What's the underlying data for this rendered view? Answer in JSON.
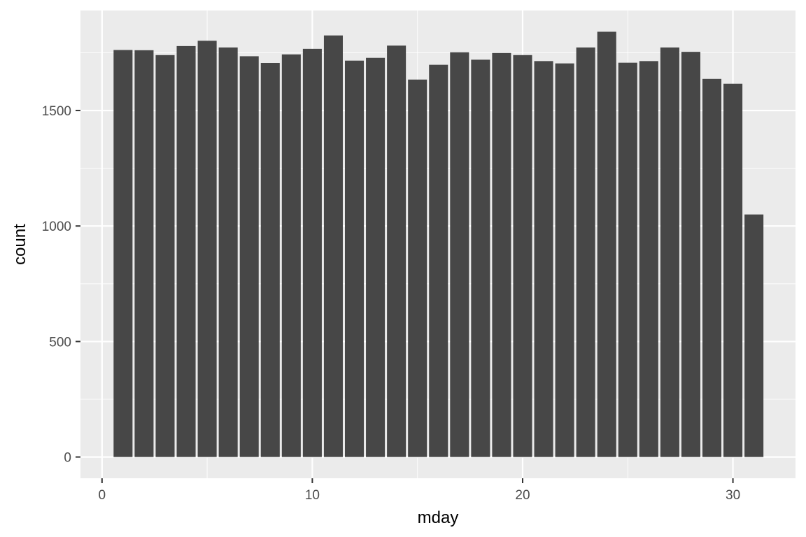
{
  "chart_data": {
    "type": "bar",
    "title": "",
    "xlabel": "mday",
    "ylabel": "count",
    "x": [
      1,
      2,
      3,
      4,
      5,
      6,
      7,
      8,
      9,
      10,
      11,
      12,
      13,
      14,
      15,
      16,
      17,
      18,
      19,
      20,
      21,
      22,
      23,
      24,
      25,
      26,
      27,
      28,
      29,
      30,
      31
    ],
    "values": [
      1762,
      1761,
      1740,
      1779,
      1802,
      1773,
      1735,
      1706,
      1743,
      1767,
      1825,
      1716,
      1728,
      1781,
      1634,
      1698,
      1752,
      1720,
      1749,
      1740,
      1714,
      1704,
      1773,
      1841,
      1707,
      1714,
      1773,
      1754,
      1637,
      1616,
      1050
    ],
    "x_ticks": [
      0,
      10,
      20,
      30
    ],
    "x_tick_labels": [
      "0",
      "10",
      "20",
      "30"
    ],
    "y_ticks": [
      0,
      500,
      1000,
      1500
    ],
    "y_tick_labels": [
      "0",
      "500",
      "1000",
      "1500"
    ],
    "xlim": [
      -1.025,
      32.975
    ],
    "ylim": [
      -92.05,
      1933.05
    ],
    "grid": true,
    "legend": "none",
    "colors": {
      "panel_background": "#ebebeb",
      "grid_major": "#ffffff",
      "grid_minor": "#f7f7f7",
      "bar_fill": "#474747",
      "tick_label": "#4d4d4d",
      "axis_title": "#000000"
    }
  }
}
